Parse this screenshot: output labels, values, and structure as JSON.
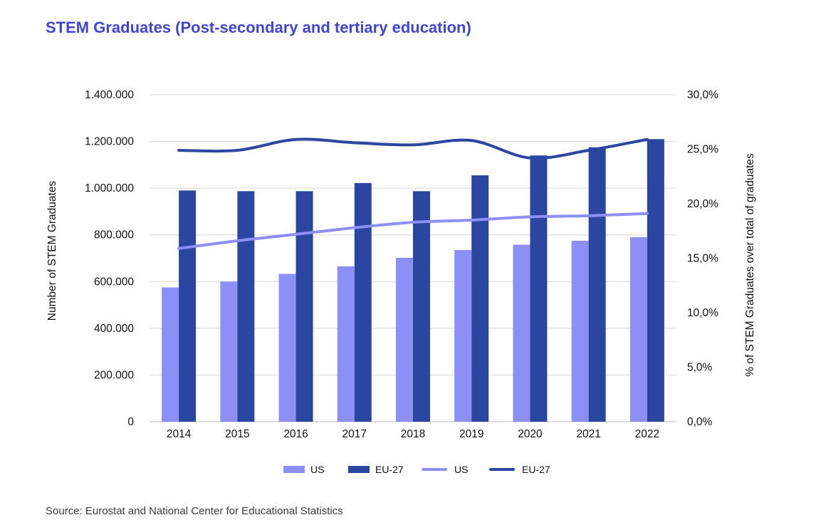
{
  "chart_data": {
    "type": "bar",
    "title": "STEM Graduates (Post-secondary and tertiary education)",
    "source": "Source: Eurostat and National Center for Educational Statistics",
    "categories": [
      "2014",
      "2015",
      "2016",
      "2017",
      "2018",
      "2019",
      "2020",
      "2021",
      "2022"
    ],
    "y_left": {
      "label": "Number of STEM Graduates",
      "range": [
        0,
        1400000
      ],
      "ticks": [
        "0",
        "200.000",
        "400.000",
        "600.000",
        "800.000",
        "1.000.000",
        "1.200.000",
        "1.400.000"
      ]
    },
    "y_right": {
      "label": "% of STEM Graduates over total of graduates",
      "range": [
        0,
        30
      ],
      "ticks": [
        "0,0%",
        "5,0%",
        "10,0%",
        "15,0%",
        "20,0%",
        "25,0%",
        "30,0%"
      ]
    },
    "bar_series": [
      {
        "name": "US",
        "color": "#8b8ff6",
        "values": [
          575000,
          600000,
          633000,
          665000,
          702000,
          735000,
          758000,
          775000,
          790000
        ]
      },
      {
        "name": "EU-27",
        "color": "#2a46a0",
        "values": [
          990000,
          987000,
          987000,
          1022000,
          987000,
          1055000,
          1140000,
          1175000,
          1210000
        ]
      }
    ],
    "line_series": [
      {
        "name": "US",
        "color": "#8b8ff6",
        "axis": "right",
        "values": [
          15.9,
          16.6,
          17.2,
          17.8,
          18.3,
          18.5,
          18.8,
          18.9,
          19.1
        ]
      },
      {
        "name": "EU-27",
        "color": "#2a46a0",
        "axis": "right",
        "values": [
          24.9,
          24.9,
          25.9,
          25.6,
          25.4,
          25.8,
          24.2,
          24.9,
          25.9
        ]
      }
    ],
    "grid": true,
    "legend_position": "bottom"
  }
}
